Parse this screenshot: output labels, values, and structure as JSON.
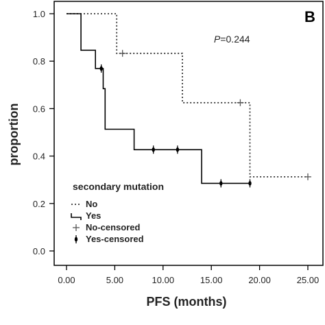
{
  "chart_data": {
    "type": "line",
    "panel_label": "B",
    "xlabel": "PFS (months)",
    "ylabel": "proportion",
    "xlim": [
      0,
      25
    ],
    "ylim": [
      0,
      1
    ],
    "xticks": [
      0,
      5,
      10,
      15,
      20,
      25
    ],
    "xtick_labels": [
      "0.00",
      "5.00",
      "10.00",
      "15.00",
      "20.00",
      "25.00"
    ],
    "yticks": [
      0,
      0.2,
      0.4,
      0.6,
      0.8,
      1.0
    ],
    "ytick_labels": [
      "0.0",
      "0.2",
      "0.4",
      "0.6",
      "0.8",
      "1.0"
    ],
    "p_value_prefix": "P",
    "p_value_text": "=0.244",
    "legend": {
      "title": "secondary mutation",
      "entries": [
        "No",
        "Yes",
        "No-censored",
        "Yes-censored"
      ]
    },
    "series": [
      {
        "name": "No",
        "style": "dotted",
        "color": "#333333",
        "steps": [
          [
            0,
            1.0
          ],
          [
            5.2,
            1.0
          ],
          [
            5.2,
            0.833
          ],
          [
            12.0,
            0.833
          ],
          [
            12.0,
            0.625
          ],
          [
            19.0,
            0.625
          ],
          [
            19.0,
            0.3125
          ],
          [
            25.0,
            0.3125
          ]
        ],
        "censored": [
          [
            5.8,
            0.833
          ],
          [
            18.0,
            0.625
          ],
          [
            25.0,
            0.3125
          ]
        ]
      },
      {
        "name": "Yes",
        "style": "solid",
        "color": "#000000",
        "steps": [
          [
            0,
            1.0
          ],
          [
            1.5,
            1.0
          ],
          [
            1.5,
            0.846
          ],
          [
            3.0,
            0.846
          ],
          [
            3.0,
            0.769
          ],
          [
            3.8,
            0.769
          ],
          [
            3.8,
            0.684
          ],
          [
            4.0,
            0.684
          ],
          [
            4.0,
            0.513
          ],
          [
            7.0,
            0.513
          ],
          [
            7.0,
            0.427
          ],
          [
            14.0,
            0.427
          ],
          [
            14.0,
            0.285
          ],
          [
            19.0,
            0.285
          ]
        ],
        "censored": [
          [
            3.6,
            0.769
          ],
          [
            9.0,
            0.427
          ],
          [
            11.5,
            0.427
          ],
          [
            16.0,
            0.285
          ],
          [
            19.0,
            0.285
          ]
        ]
      }
    ]
  }
}
